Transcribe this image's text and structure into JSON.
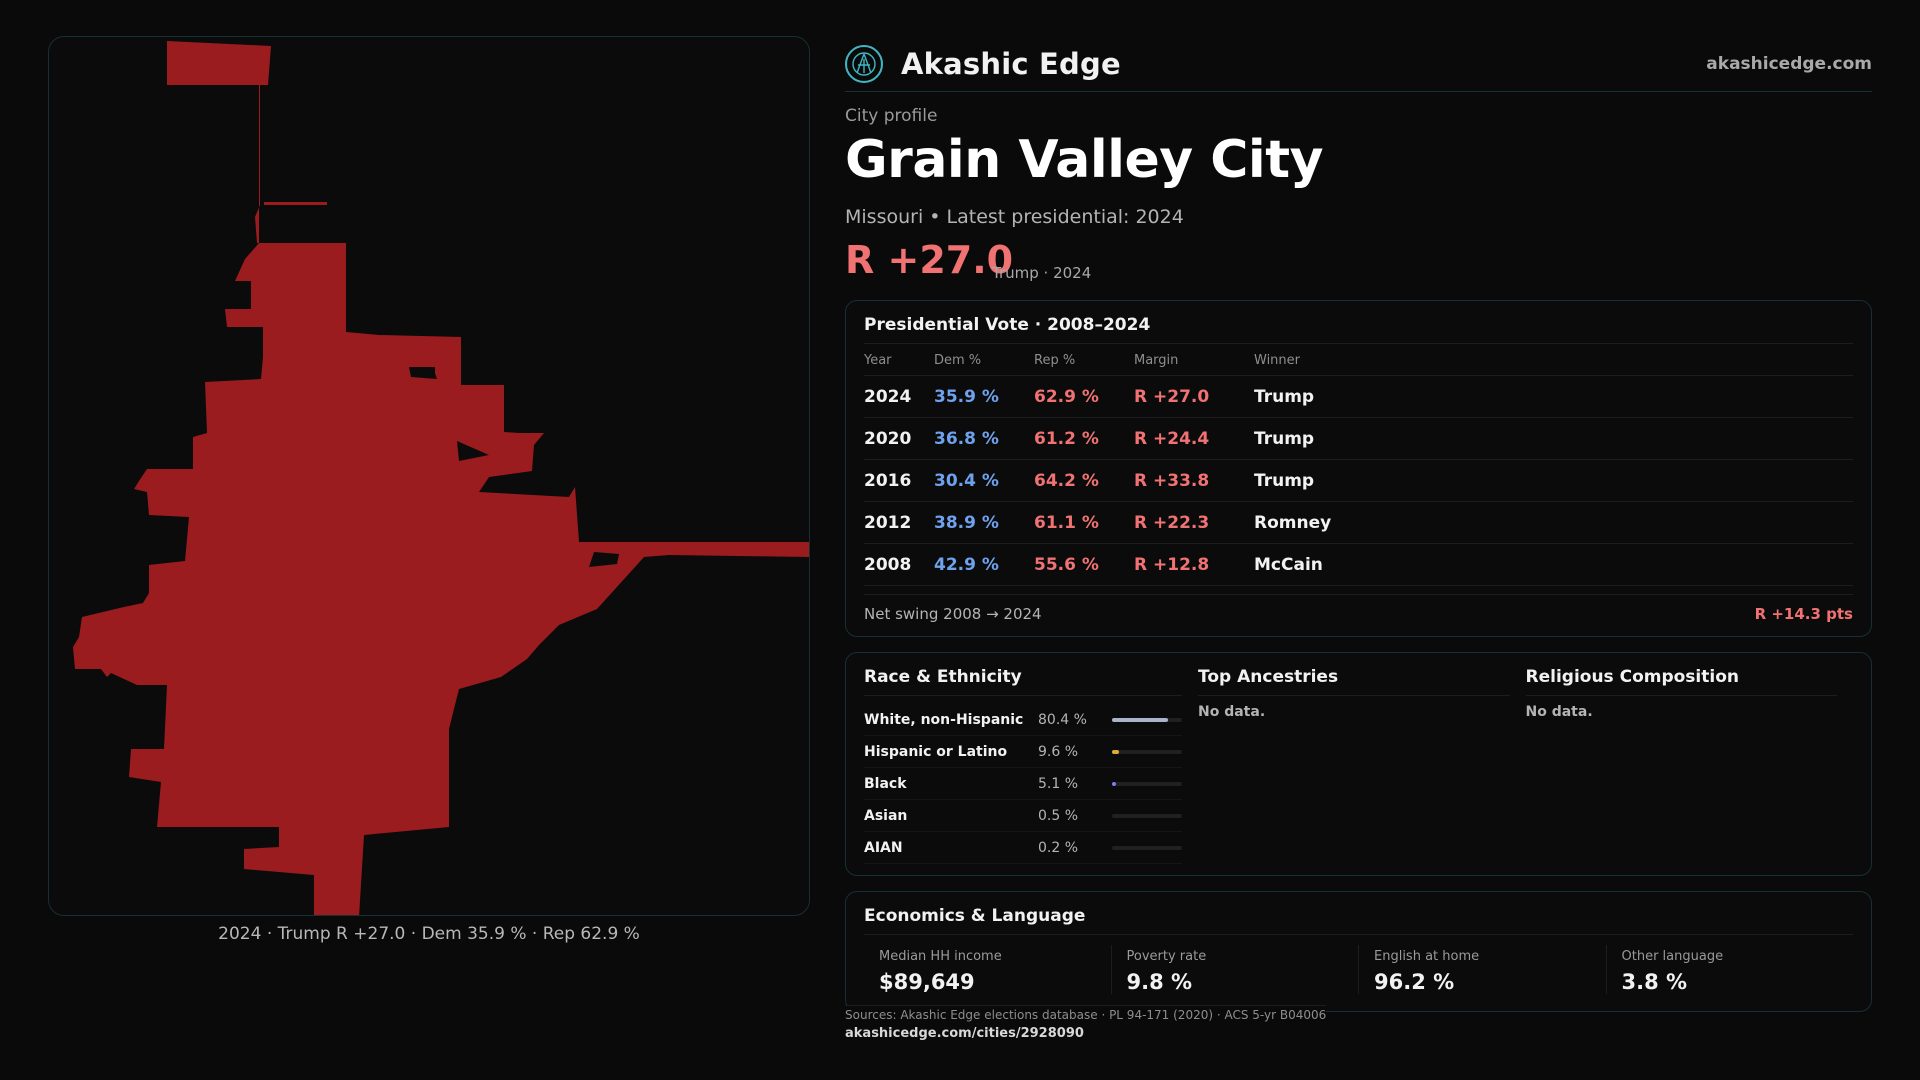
{
  "brand": {
    "name": "Akashic Edge",
    "url": "akashicedge.com"
  },
  "profile": {
    "kicker": "City profile",
    "city": "Grain Valley City",
    "subline": "Missouri • Latest presidential: 2024",
    "headline_margin": "R +27.0",
    "headline_note": "Trump · 2024"
  },
  "map": {
    "caption": "2024 · Trump  R +27.0 · Dem 35.9 % · Rep 62.9 %",
    "fill_color": "#9b1c1f"
  },
  "presidential": {
    "title": "Presidential Vote · 2008–2024",
    "columns": [
      "Year",
      "Dem %",
      "Rep %",
      "Margin",
      "Winner"
    ],
    "rows": [
      {
        "year": "2024",
        "dem": "35.9 %",
        "rep": "62.9 %",
        "margin": "R +27.0",
        "winner": "Trump"
      },
      {
        "year": "2020",
        "dem": "36.8 %",
        "rep": "61.2 %",
        "margin": "R +24.4",
        "winner": "Trump"
      },
      {
        "year": "2016",
        "dem": "30.4 %",
        "rep": "64.2 %",
        "margin": "R +33.8",
        "winner": "Trump"
      },
      {
        "year": "2012",
        "dem": "38.9 %",
        "rep": "61.1 %",
        "margin": "R +22.3",
        "winner": "Romney"
      },
      {
        "year": "2008",
        "dem": "42.9 %",
        "rep": "55.6 %",
        "margin": "R +12.8",
        "winner": "McCain"
      }
    ],
    "swing_label": "Net swing 2008 → 2024",
    "swing_value": "R +14.3 pts"
  },
  "demographics": {
    "race_title": "Race & Ethnicity",
    "race": [
      {
        "name": "White, non-Hispanic",
        "pct": "80.4 %",
        "share": 80.4,
        "color": "#aab4c8"
      },
      {
        "name": "Hispanic or Latino",
        "pct": "9.6 %",
        "share": 9.6,
        "color": "#e0a93a"
      },
      {
        "name": "Black",
        "pct": "5.1 %",
        "share": 5.1,
        "color": "#7a80e8"
      },
      {
        "name": "Asian",
        "pct": "0.5 %",
        "share": 0.5,
        "color": "#4fc1b6"
      },
      {
        "name": "AIAN",
        "pct": "0.2 %",
        "share": 0.2,
        "color": "#c98a5a"
      }
    ],
    "ancestry_title": "Top Ancestries",
    "ancestry_text": "No data.",
    "religion_title": "Religious Composition",
    "religion_text": "No data."
  },
  "economics": {
    "title": "Economics & Language",
    "cells": [
      {
        "label": "Median HH income",
        "value": "$89,649"
      },
      {
        "label": "Poverty rate",
        "value": "9.8 %"
      },
      {
        "label": "English at home",
        "value": "96.2 %"
      },
      {
        "label": "Other language",
        "value": "3.8 %"
      }
    ]
  },
  "footer": {
    "sources": "Sources: Akashic Edge elections database · PL 94-171 (2020) · ACS 5-yr B04006",
    "permalink": "akashicedge.com/cities/2928090"
  },
  "colors": {
    "dem": "#6fa2ee",
    "rep": "#f07272",
    "accent": "#3fb8c2"
  }
}
